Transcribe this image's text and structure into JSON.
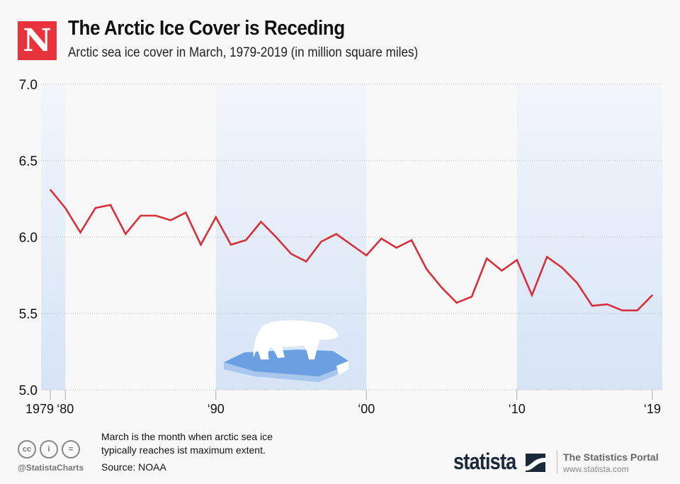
{
  "header": {
    "logo_letter": "N",
    "title": "The Arctic Ice Cover is Receding",
    "subtitle": "Arctic sea ice cover in March, 1979-2019 (in million square miles)"
  },
  "footer": {
    "note_line1": "March is the month when arctic sea ice",
    "note_line2": "typically reaches ist maximum extent.",
    "source": "Source: NOAA",
    "handle": "@StatistaCharts",
    "cc_icons": [
      "cc",
      "by",
      "nd"
    ],
    "brand": "statista",
    "portal_title": "The Statistics Portal",
    "portal_url": "www.statista.com"
  },
  "colors": {
    "line": "#d7303a",
    "logo": "#e8323c",
    "band": "#dce8f7"
  },
  "chart_data": {
    "type": "line",
    "title": "The Arctic Ice Cover is Receding",
    "subtitle": "Arctic sea ice cover in March, 1979-2019 (in million square miles)",
    "xlabel": "",
    "ylabel": "",
    "ylim": [
      5.0,
      7.0
    ],
    "xlim": [
      1979,
      2019
    ],
    "yticks": [
      "7.0",
      "6.5",
      "6.0",
      "5.5",
      "5.0"
    ],
    "ytick_values": [
      7.0,
      6.5,
      6.0,
      5.5,
      5.0
    ],
    "xticks": [
      {
        "year": 1979,
        "label": "1979"
      },
      {
        "year": 1980,
        "label": "‘80"
      },
      {
        "year": 1990,
        "label": "‘90"
      },
      {
        "year": 2000,
        "label": "‘00"
      },
      {
        "year": 2010,
        "label": "‘10"
      },
      {
        "year": 2019,
        "label": "‘19"
      }
    ],
    "grid": true,
    "shaded_bands": [
      [
        1979,
        1980
      ],
      [
        1990,
        2000
      ],
      [
        2010,
        2019
      ]
    ],
    "series": [
      {
        "name": "Arctic sea ice cover (March)",
        "x": [
          1979,
          1980,
          1981,
          1982,
          1983,
          1984,
          1985,
          1986,
          1987,
          1988,
          1989,
          1990,
          1991,
          1992,
          1993,
          1994,
          1995,
          1996,
          1997,
          1998,
          1999,
          2000,
          2001,
          2002,
          2003,
          2004,
          2005,
          2006,
          2007,
          2008,
          2009,
          2010,
          2011,
          2012,
          2013,
          2014,
          2015,
          2016,
          2017,
          2018,
          2019
        ],
        "values": [
          6.31,
          6.19,
          6.03,
          6.19,
          6.21,
          6.02,
          6.14,
          6.14,
          6.11,
          6.16,
          5.95,
          6.13,
          5.95,
          5.98,
          6.1,
          6.0,
          5.89,
          5.84,
          5.97,
          6.02,
          5.95,
          5.88,
          5.99,
          5.93,
          5.98,
          5.79,
          5.67,
          5.57,
          5.61,
          5.86,
          5.78,
          5.85,
          5.62,
          5.87,
          5.8,
          5.7,
          5.55,
          5.56,
          5.52,
          5.52,
          5.62
        ]
      }
    ]
  }
}
